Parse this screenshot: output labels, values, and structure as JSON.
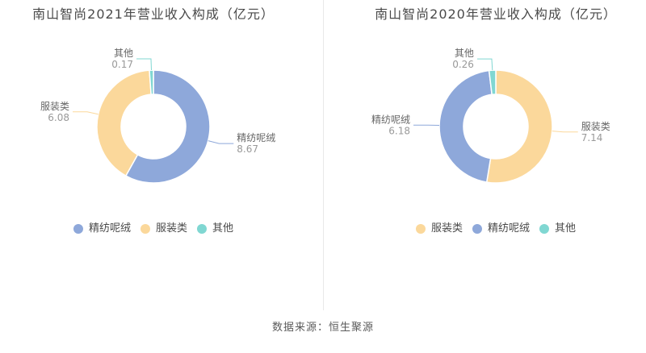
{
  "page": {
    "source_note": "数据来源：恒生聚源",
    "background": "#ffffff",
    "divider_color": "#e8e8e8"
  },
  "chart_data": [
    {
      "type": "pie",
      "subtype": "donut",
      "title": "南山智尚2021年营业收入构成（亿元）",
      "unit": "亿元",
      "start_angle_deg": 0,
      "direction": "clockwise",
      "series": [
        {
          "name": "精纺呢绒",
          "value": 8.67,
          "color": "#8EA8DA"
        },
        {
          "name": "服装类",
          "value": 6.08,
          "color": "#FBD89B"
        },
        {
          "name": "其他",
          "value": 0.17,
          "color": "#80D7D2"
        }
      ],
      "legend": {
        "position": "bottom",
        "items": [
          "精纺呢绒",
          "服装类",
          "其他"
        ]
      },
      "label_color": "#666666",
      "value_color": "#999999"
    },
    {
      "type": "pie",
      "subtype": "donut",
      "title": "南山智尚2020年营业收入构成（亿元）",
      "unit": "亿元",
      "start_angle_deg": 0,
      "direction": "clockwise",
      "series": [
        {
          "name": "服装类",
          "value": 7.14,
          "color": "#FBD89B"
        },
        {
          "name": "精纺呢绒",
          "value": 6.18,
          "color": "#8EA8DA"
        },
        {
          "name": "其他",
          "value": 0.26,
          "color": "#80D7D2"
        }
      ],
      "legend": {
        "position": "bottom",
        "items": [
          "服装类",
          "精纺呢绒",
          "其他"
        ]
      },
      "label_color": "#666666",
      "value_color": "#999999"
    }
  ]
}
